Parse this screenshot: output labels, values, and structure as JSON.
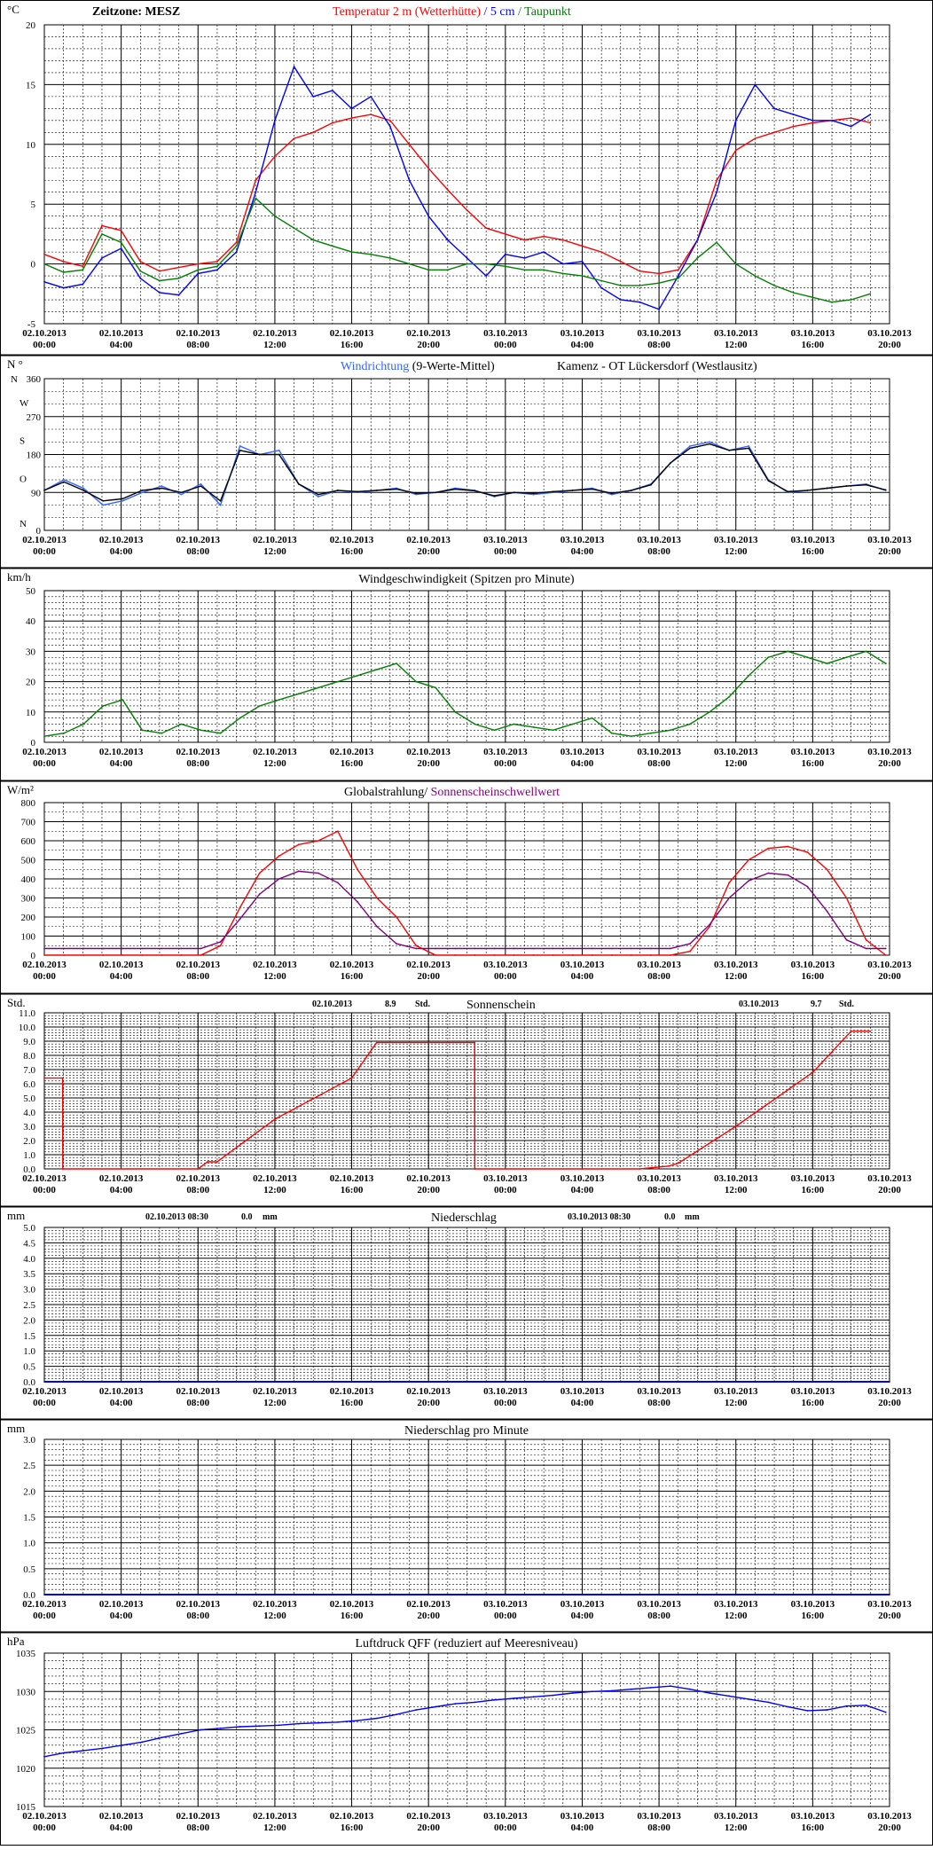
{
  "page": {
    "station": "Kamenz - OT Lückersdorf (Westlausitz)",
    "zeitzone": "Zeitzone: MESZ"
  },
  "x_labels": [
    [
      "02.10.2013",
      "00:00"
    ],
    [
      "02.10.2013",
      "04:00"
    ],
    [
      "02.10.2013",
      "08:00"
    ],
    [
      "02.10.2013",
      "12:00"
    ],
    [
      "02.10.2013",
      "16:00"
    ],
    [
      "02.10.2013",
      "20:00"
    ],
    [
      "03.10.2013",
      "00:00"
    ],
    [
      "03.10.2013",
      "04:00"
    ],
    [
      "03.10.2013",
      "08:00"
    ],
    [
      "03.10.2013",
      "12:00"
    ],
    [
      "03.10.2013",
      "16:00"
    ],
    [
      "03.10.2013",
      "20:00"
    ]
  ],
  "colors": {
    "temp": "#ff0000",
    "soil": "#0000ff",
    "dew": "#008000",
    "wind": "#0000ff",
    "dir": "#3366ff",
    "gust": "#008000",
    "radiation": "#ff0000",
    "threshold": "#800080",
    "sun": "#ff0000",
    "rain": "#0000ff",
    "pressure": "#0000ff"
  },
  "chart_data": [
    {
      "id": "temperature",
      "type": "line",
      "unit": "°C",
      "title": "Zeitzone: MESZ",
      "title_parts": [
        {
          "text": "Temperatur 2 m (Wetterhütte)",
          "color": "#ff0000"
        },
        {
          "text": "  /  ",
          "color": "#0000ff"
        },
        {
          "text": "5 cm",
          "color": "#0000ff"
        },
        {
          "text": " / ",
          "color": "#008000"
        },
        {
          "text": "Taupunkt",
          "color": "#008000"
        }
      ],
      "ylim": [
        -5,
        20
      ],
      "yticks": [
        "-5",
        "0",
        "5",
        "10",
        "15",
        "20"
      ],
      "grid": true,
      "x_hours": [
        0,
        1,
        2,
        3,
        4,
        5,
        6,
        7,
        8,
        9,
        10,
        11,
        12,
        13,
        14,
        15,
        16,
        17,
        18,
        19,
        20,
        21,
        22,
        23,
        24,
        25,
        26,
        27,
        28,
        29,
        30,
        31,
        32,
        33,
        34,
        35,
        36,
        37,
        38,
        39,
        40,
        41,
        42,
        43
      ],
      "series": [
        {
          "name": "Temperatur 2 m (Wetterhütte)",
          "color": "#ff0000",
          "values": [
            0.8,
            0.2,
            -0.2,
            3.2,
            2.8,
            0.2,
            -0.6,
            -0.3,
            0.0,
            0.2,
            1.8,
            7.0,
            9.0,
            10.5,
            11.0,
            11.8,
            12.2,
            12.5,
            12.0,
            10.0,
            8.0,
            6.2,
            4.5,
            3.0,
            2.5,
            2.0,
            2.3,
            2.0,
            1.5,
            1.0,
            0.2,
            -0.6,
            -0.8,
            -0.5,
            2.0,
            7.0,
            9.5,
            10.5,
            11.0,
            11.5,
            11.8,
            12.0,
            12.2,
            11.8
          ]
        },
        {
          "name": "5 cm",
          "color": "#0000ff",
          "values": [
            -1.5,
            -2.0,
            -1.7,
            0.5,
            1.3,
            -1.2,
            -2.4,
            -2.6,
            -0.8,
            -0.5,
            1.0,
            6.0,
            12.0,
            16.5,
            14.0,
            14.5,
            13.0,
            14.0,
            11.5,
            7.0,
            4.0,
            2.0,
            0.5,
            -1.0,
            0.8,
            0.5,
            1.0,
            0.0,
            0.2,
            -2.0,
            -3.0,
            -3.2,
            -3.8,
            -1.0,
            2.0,
            6.0,
            12.0,
            15.0,
            13.0,
            12.5,
            12.0,
            12.0,
            11.5,
            12.5
          ]
        },
        {
          "name": "Taupunkt",
          "color": "#008000",
          "values": [
            0.0,
            -0.7,
            -0.5,
            2.5,
            1.8,
            -0.6,
            -1.4,
            -1.2,
            -0.5,
            -0.2,
            1.5,
            5.5,
            4.0,
            3.0,
            2.0,
            1.5,
            1.0,
            0.8,
            0.5,
            0.0,
            -0.5,
            -0.5,
            0.0,
            0.0,
            -0.2,
            -0.5,
            -0.5,
            -0.8,
            -1.0,
            -1.4,
            -1.8,
            -1.8,
            -1.6,
            -1.2,
            0.5,
            1.8,
            0.0,
            -1.0,
            -1.8,
            -2.4,
            -2.8,
            -3.2,
            -3.0,
            -2.5
          ]
        }
      ]
    },
    {
      "id": "direction",
      "type": "line",
      "unit": "N  °",
      "title": "Kamenz - OT Lückersdorf (Westlausitz)",
      "title_parts": [
        {
          "text": "Windrichtung",
          "color": "#3366ff"
        },
        {
          "text": " (9-Werte-Mittel)",
          "color": "#000000"
        }
      ],
      "ylim": [
        0,
        360
      ],
      "yticks": [
        "0",
        "90",
        "180",
        "270",
        "360"
      ],
      "ylabels_dir": [
        "N",
        "O",
        "S",
        "W",
        "N"
      ],
      "grid": true,
      "series": [
        {
          "name": "Windrichtung (9-Werte-Mittel)",
          "color": "#3366ff",
          "values": [
            95,
            120,
            100,
            60,
            70,
            90,
            105,
            85,
            110,
            60,
            200,
            180,
            190,
            110,
            80,
            95,
            90,
            95,
            100,
            85,
            90,
            100,
            95,
            80,
            90,
            85,
            90,
            95,
            100,
            85,
            95,
            110,
            160,
            200,
            210,
            190,
            200,
            120,
            90,
            95,
            100,
            105,
            110,
            95
          ]
        },
        {
          "name": "Windrichtung (Mittel)",
          "color": "#000000",
          "values": [
            95,
            115,
            95,
            70,
            75,
            95,
            100,
            90,
            105,
            70,
            190,
            180,
            180,
            110,
            85,
            95,
            92,
            95,
            98,
            88,
            90,
            98,
            94,
            82,
            90,
            88,
            92,
            95,
            98,
            88,
            95,
            108,
            160,
            195,
            205,
            190,
            195,
            118,
            92,
            95,
            100,
            105,
            108,
            96
          ]
        }
      ]
    },
    {
      "id": "windspeed",
      "type": "line",
      "unit": "km/h",
      "title": "Windgeschwindigkeit (Spitzen pro Minute)",
      "ylim": [
        0,
        50
      ],
      "yticks": [
        "0",
        "10",
        "20",
        "30",
        "40",
        "50"
      ],
      "grid": true,
      "series": [
        {
          "name": "Windgeschwindigkeit (Spitzen pro Minute)",
          "color": "#008000",
          "values": [
            2,
            3,
            6,
            12,
            14,
            4,
            3,
            6,
            4,
            3,
            8,
            12,
            14,
            16,
            18,
            20,
            22,
            24,
            26,
            20,
            18,
            10,
            6,
            4,
            6,
            5,
            4,
            6,
            8,
            3,
            2,
            3,
            4,
            6,
            10,
            15,
            22,
            28,
            30,
            28,
            26,
            28,
            30,
            26
          ]
        }
      ]
    },
    {
      "id": "radiation",
      "type": "line",
      "unit": "W/m²",
      "title": "Globalstrahlung/ Sonnenscheinschwellwert",
      "title_parts": [
        {
          "text": "Globalstrahlung/ ",
          "color": "#000000"
        },
        {
          "text": "Sonnenscheinschwellwert",
          "color": "#800080"
        }
      ],
      "ylim": [
        0,
        800
      ],
      "yticks": [
        "0",
        "100",
        "200",
        "300",
        "400",
        "500",
        "600",
        "700",
        "800"
      ],
      "grid": true,
      "series": [
        {
          "name": "Globalstrahlung",
          "color": "#ff0000",
          "values": [
            0,
            0,
            0,
            0,
            0,
            0,
            0,
            0,
            0,
            50,
            250,
            430,
            520,
            580,
            600,
            650,
            450,
            300,
            200,
            50,
            0,
            0,
            0,
            0,
            0,
            0,
            0,
            0,
            0,
            0,
            0,
            0,
            0,
            20,
            150,
            380,
            500,
            560,
            570,
            540,
            450,
            300,
            80,
            0
          ]
        },
        {
          "name": "Sonnenscheinschwellwert",
          "color": "#800080",
          "values": [
            35,
            35,
            35,
            35,
            35,
            35,
            35,
            35,
            35,
            70,
            190,
            320,
            400,
            440,
            430,
            380,
            280,
            150,
            60,
            35,
            35,
            35,
            35,
            35,
            35,
            35,
            35,
            35,
            35,
            35,
            35,
            35,
            35,
            60,
            160,
            300,
            390,
            430,
            420,
            360,
            230,
            80,
            35,
            35
          ]
        }
      ]
    },
    {
      "id": "sunshine",
      "type": "line",
      "unit": "Std.",
      "title": "Sonnenschein",
      "annotations": [
        {
          "date": "02.10.2013",
          "value": "8.9",
          "unit": "Std."
        },
        {
          "date": "03.10.2013",
          "value": "9.7",
          "unit": "Std."
        }
      ],
      "ylim": [
        0,
        11
      ],
      "yticks": [
        "0.0",
        "1.0",
        "2.0",
        "3.0",
        "4.0",
        "5.0",
        "6.0",
        "7.0",
        "8.0",
        "9.0",
        "10.0",
        "11.0"
      ],
      "grid": true,
      "series": [
        {
          "name": "Sonnenschein",
          "color": "#ff0000",
          "x_hours": [
            0,
            0.95,
            0.96,
            8.0,
            8.5,
            9.0,
            12.0,
            16.0,
            17.3,
            21.0,
            22.4,
            22.41,
            28.0,
            31.0,
            32.5,
            33.0,
            36.0,
            40.0,
            42.0,
            43.0
          ],
          "values": [
            6.4,
            6.4,
            0.0,
            0.0,
            0.5,
            0.5,
            3.5,
            6.4,
            8.9,
            8.9,
            8.9,
            0.0,
            0.0,
            0.0,
            0.2,
            0.4,
            3.0,
            6.8,
            9.7,
            9.7
          ]
        }
      ]
    },
    {
      "id": "precip",
      "type": "line",
      "unit": "mm",
      "title": "Niederschlag",
      "annotations": [
        {
          "date": "02.10.2013 08:30",
          "value": "0.0",
          "unit": "mm"
        },
        {
          "date": "03.10.2013 08:30",
          "value": "0.0",
          "unit": "mm"
        }
      ],
      "ylim": [
        0,
        5
      ],
      "yticks": [
        "0.0",
        "0.5",
        "1.0",
        "1.5",
        "2.0",
        "2.5",
        "3.0",
        "3.5",
        "4.0",
        "4.5",
        "5.0"
      ],
      "grid": true,
      "series": [
        {
          "name": "Niederschlag",
          "color": "#0000ff",
          "values": [
            0,
            0
          ]
        }
      ]
    },
    {
      "id": "precip_min",
      "type": "line",
      "unit": "mm",
      "title": "Niederschlag pro Minute",
      "ylim": [
        0,
        3
      ],
      "yticks": [
        "0.0",
        "0.5",
        "1.0",
        "1.5",
        "2.0",
        "2.5",
        "3.0"
      ],
      "grid": true,
      "series": [
        {
          "name": "Niederschlag pro Minute",
          "color": "#0000ff",
          "values": [
            0,
            0
          ]
        }
      ]
    },
    {
      "id": "pressure",
      "type": "line",
      "unit": "hPa",
      "title": "Luftdruck QFF (reduziert auf Meeresniveau)",
      "ylim": [
        1015,
        1035
      ],
      "yticks": [
        "1015",
        "1020",
        "1025",
        "1030",
        "1035"
      ],
      "grid": true,
      "series": [
        {
          "name": "Luftdruck QFF",
          "color": "#0000ff",
          "values": [
            1021.5,
            1022.0,
            1022.3,
            1022.6,
            1023.0,
            1023.4,
            1024.0,
            1024.5,
            1025.0,
            1025.2,
            1025.4,
            1025.5,
            1025.6,
            1025.8,
            1025.9,
            1026.0,
            1026.2,
            1026.5,
            1027.0,
            1027.6,
            1028.0,
            1028.4,
            1028.6,
            1028.9,
            1029.1,
            1029.3,
            1029.5,
            1029.8,
            1030.0,
            1030.1,
            1030.3,
            1030.5,
            1030.7,
            1030.3,
            1029.8,
            1029.4,
            1029.0,
            1028.6,
            1028.0,
            1027.5,
            1027.6,
            1028.1,
            1028.2,
            1027.3
          ]
        }
      ]
    }
  ]
}
